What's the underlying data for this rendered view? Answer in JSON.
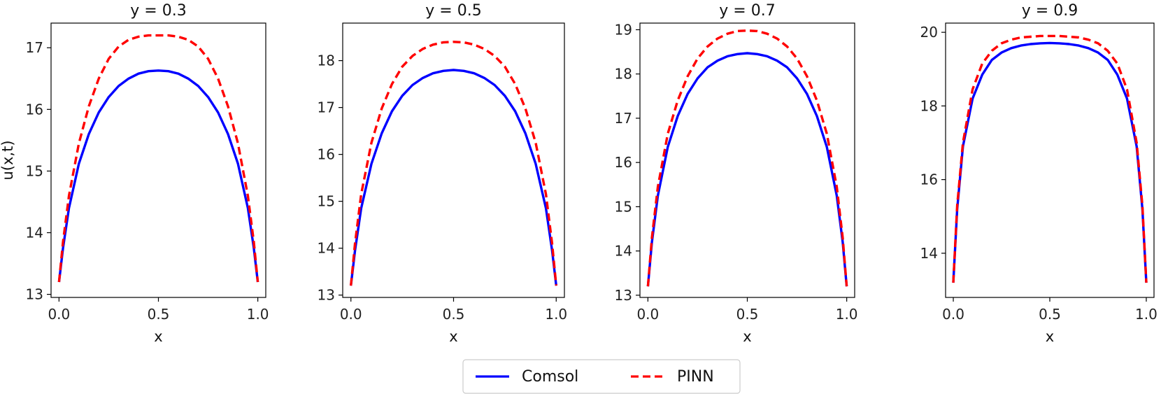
{
  "chart_data": [
    {
      "type": "line",
      "title": "y = 0.3",
      "xlabel": "x",
      "ylabel": "u(x,t)",
      "xlim": [
        -0.04,
        1.04
      ],
      "ylim": [
        12.95,
        17.4
      ],
      "xticks": [
        "0.0",
        "0.5",
        "1.0"
      ],
      "yticks": [
        "13",
        "14",
        "15",
        "16",
        "17"
      ],
      "x": [
        0.0,
        0.02,
        0.05,
        0.1,
        0.15,
        0.2,
        0.25,
        0.3,
        0.35,
        0.4,
        0.45,
        0.5,
        0.55,
        0.6,
        0.65,
        0.7,
        0.75,
        0.8,
        0.85,
        0.9,
        0.95,
        0.98,
        1.0
      ],
      "series": [
        {
          "name": "Comsol",
          "values": [
            13.2,
            13.75,
            14.4,
            15.12,
            15.6,
            15.95,
            16.2,
            16.38,
            16.5,
            16.58,
            16.62,
            16.63,
            16.62,
            16.58,
            16.5,
            16.38,
            16.2,
            15.95,
            15.6,
            15.12,
            14.4,
            13.75,
            13.2
          ]
        },
        {
          "name": "PINN",
          "values": [
            13.2,
            13.85,
            14.6,
            15.45,
            16.05,
            16.5,
            16.82,
            17.02,
            17.13,
            17.18,
            17.2,
            17.2,
            17.2,
            17.18,
            17.13,
            17.02,
            16.82,
            16.5,
            16.05,
            15.45,
            14.6,
            13.85,
            13.2
          ]
        }
      ]
    },
    {
      "type": "line",
      "title": "y = 0.5",
      "xlabel": "x",
      "ylabel": "",
      "xlim": [
        -0.04,
        1.04
      ],
      "ylim": [
        12.95,
        18.8
      ],
      "xticks": [
        "0.0",
        "0.5",
        "1.0"
      ],
      "yticks": [
        "13",
        "14",
        "15",
        "16",
        "17",
        "18"
      ],
      "x": [
        0.0,
        0.02,
        0.05,
        0.1,
        0.15,
        0.2,
        0.25,
        0.3,
        0.35,
        0.4,
        0.45,
        0.5,
        0.55,
        0.6,
        0.65,
        0.7,
        0.75,
        0.8,
        0.85,
        0.9,
        0.95,
        0.98,
        1.0
      ],
      "series": [
        {
          "name": "Comsol",
          "values": [
            13.2,
            13.95,
            14.85,
            15.8,
            16.45,
            16.92,
            17.25,
            17.48,
            17.63,
            17.73,
            17.78,
            17.8,
            17.78,
            17.73,
            17.63,
            17.48,
            17.25,
            16.92,
            16.45,
            15.8,
            14.85,
            13.95,
            13.2
          ]
        },
        {
          "name": "PINN",
          "values": [
            13.2,
            14.1,
            15.15,
            16.25,
            16.98,
            17.5,
            17.87,
            18.1,
            18.25,
            18.34,
            18.39,
            18.4,
            18.39,
            18.34,
            18.25,
            18.1,
            17.87,
            17.5,
            16.98,
            16.25,
            15.15,
            14.1,
            13.2
          ]
        }
      ]
    },
    {
      "type": "line",
      "title": "y = 0.7",
      "xlabel": "x",
      "ylabel": "",
      "xlim": [
        -0.04,
        1.04
      ],
      "ylim": [
        12.95,
        19.15
      ],
      "xticks": [
        "0.0",
        "0.5",
        "1.0"
      ],
      "yticks": [
        "13",
        "14",
        "15",
        "16",
        "17",
        "18",
        "19"
      ],
      "x": [
        0.0,
        0.02,
        0.05,
        0.1,
        0.15,
        0.2,
        0.25,
        0.3,
        0.35,
        0.4,
        0.45,
        0.5,
        0.55,
        0.6,
        0.65,
        0.7,
        0.75,
        0.8,
        0.85,
        0.9,
        0.95,
        0.98,
        1.0
      ],
      "series": [
        {
          "name": "Comsol",
          "values": [
            13.2,
            14.2,
            15.25,
            16.35,
            17.05,
            17.55,
            17.9,
            18.15,
            18.3,
            18.4,
            18.45,
            18.47,
            18.45,
            18.4,
            18.3,
            18.15,
            17.9,
            17.55,
            17.05,
            16.35,
            15.25,
            14.2,
            13.2
          ]
        },
        {
          "name": "PINN",
          "values": [
            13.2,
            14.3,
            15.45,
            16.65,
            17.4,
            17.95,
            18.35,
            18.62,
            18.8,
            18.91,
            18.97,
            18.98,
            18.97,
            18.91,
            18.8,
            18.62,
            18.35,
            17.95,
            17.4,
            16.65,
            15.45,
            14.3,
            13.2
          ]
        }
      ]
    },
    {
      "type": "line",
      "title": "y = 0.9",
      "xlabel": "x",
      "ylabel": "",
      "xlim": [
        -0.04,
        1.04
      ],
      "ylim": [
        12.8,
        20.25
      ],
      "xticks": [
        "0.0",
        "0.5",
        "1.0"
      ],
      "yticks": [
        "14",
        "16",
        "18",
        "20"
      ],
      "x": [
        0.0,
        0.02,
        0.05,
        0.1,
        0.15,
        0.2,
        0.25,
        0.3,
        0.35,
        0.4,
        0.45,
        0.5,
        0.55,
        0.6,
        0.65,
        0.7,
        0.75,
        0.8,
        0.85,
        0.9,
        0.95,
        0.98,
        1.0
      ],
      "series": [
        {
          "name": "Comsol",
          "values": [
            13.2,
            15.2,
            16.9,
            18.2,
            18.85,
            19.25,
            19.45,
            19.57,
            19.64,
            19.68,
            19.7,
            19.71,
            19.7,
            19.68,
            19.64,
            19.57,
            19.45,
            19.25,
            18.85,
            18.2,
            16.9,
            15.2,
            13.2
          ]
        },
        {
          "name": "PINN",
          "values": [
            13.2,
            15.3,
            17.0,
            18.45,
            19.15,
            19.5,
            19.7,
            19.8,
            19.86,
            19.88,
            19.9,
            19.9,
            19.9,
            19.88,
            19.86,
            19.8,
            19.7,
            19.5,
            19.15,
            18.45,
            17.0,
            15.3,
            13.2
          ]
        }
      ]
    }
  ],
  "legend": {
    "placement": "bottom-center",
    "entries": [
      {
        "label": "Comsol",
        "color": "#0000ff",
        "style": "solid"
      },
      {
        "label": "PINN",
        "color": "#ff0000",
        "style": "dashed"
      }
    ]
  },
  "colors": {
    "comsol": "#0000ff",
    "pinn": "#ff0000"
  }
}
